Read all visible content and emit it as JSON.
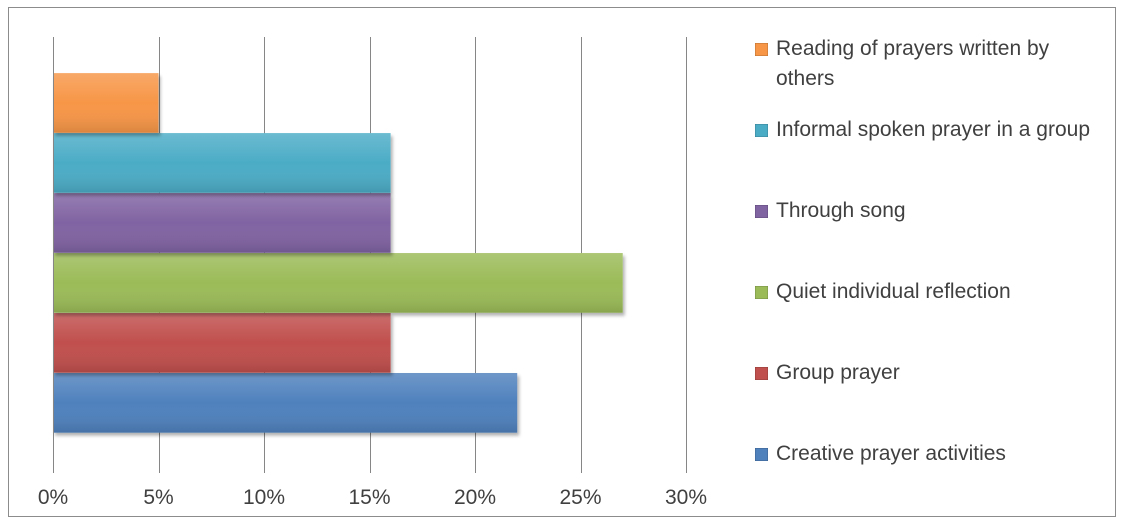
{
  "chart_data": {
    "type": "bar",
    "orientation": "horizontal",
    "categories": [
      "Creative prayer activities",
      "Group prayer",
      "Quiet individual reflection",
      "Through song",
      "Informal spoken prayer in a group",
      "Reading of prayers written by others"
    ],
    "values": [
      22,
      16,
      27,
      16,
      16,
      5
    ],
    "colors": [
      "#4f81bd",
      "#c0504d",
      "#9bbb59",
      "#8064a2",
      "#4bacc6",
      "#f79646"
    ],
    "xlim": [
      0,
      30
    ],
    "xticks": [
      0,
      5,
      10,
      15,
      20,
      25,
      30
    ],
    "xtick_labels": [
      "0%",
      "5%",
      "10%",
      "15%",
      "20%",
      "25%",
      "30%"
    ],
    "grid": "vertical",
    "legend_position": "right",
    "legend_order": [
      "Reading of prayers written by others",
      "Informal spoken prayer in a group",
      "Through song",
      "Quiet individual reflection",
      "Group prayer",
      "Creative prayer activities"
    ],
    "title": "",
    "xlabel": "",
    "ylabel": ""
  }
}
